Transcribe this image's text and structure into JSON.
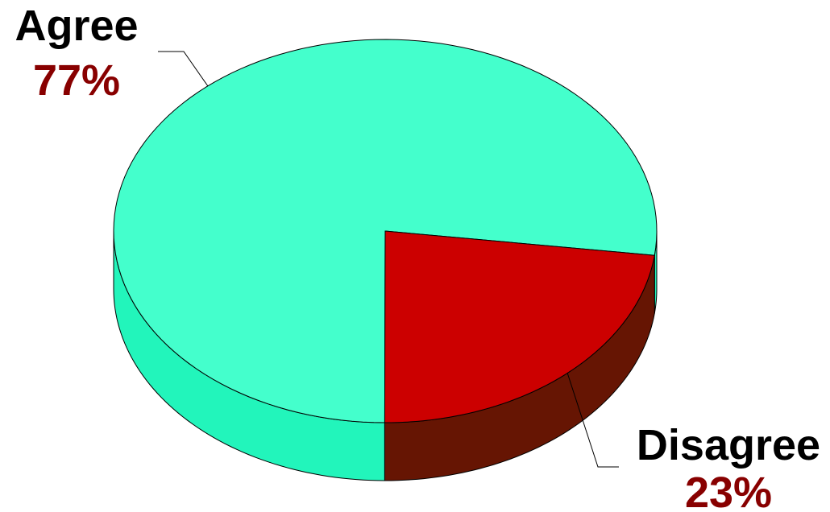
{
  "chart_data": {
    "type": "pie",
    "style": "3d",
    "title": "",
    "slices": [
      {
        "label": "Agree",
        "value": 77,
        "value_label": "77%",
        "color": "#44ffcc",
        "side_color": "#22f5bb"
      },
      {
        "label": "Disagree",
        "value": 23,
        "value_label": "23%",
        "color": "#cc0000",
        "side_color": "#661503"
      }
    ],
    "label_color": "#000000",
    "percent_color": "#880000",
    "outline_color": "#000000"
  }
}
